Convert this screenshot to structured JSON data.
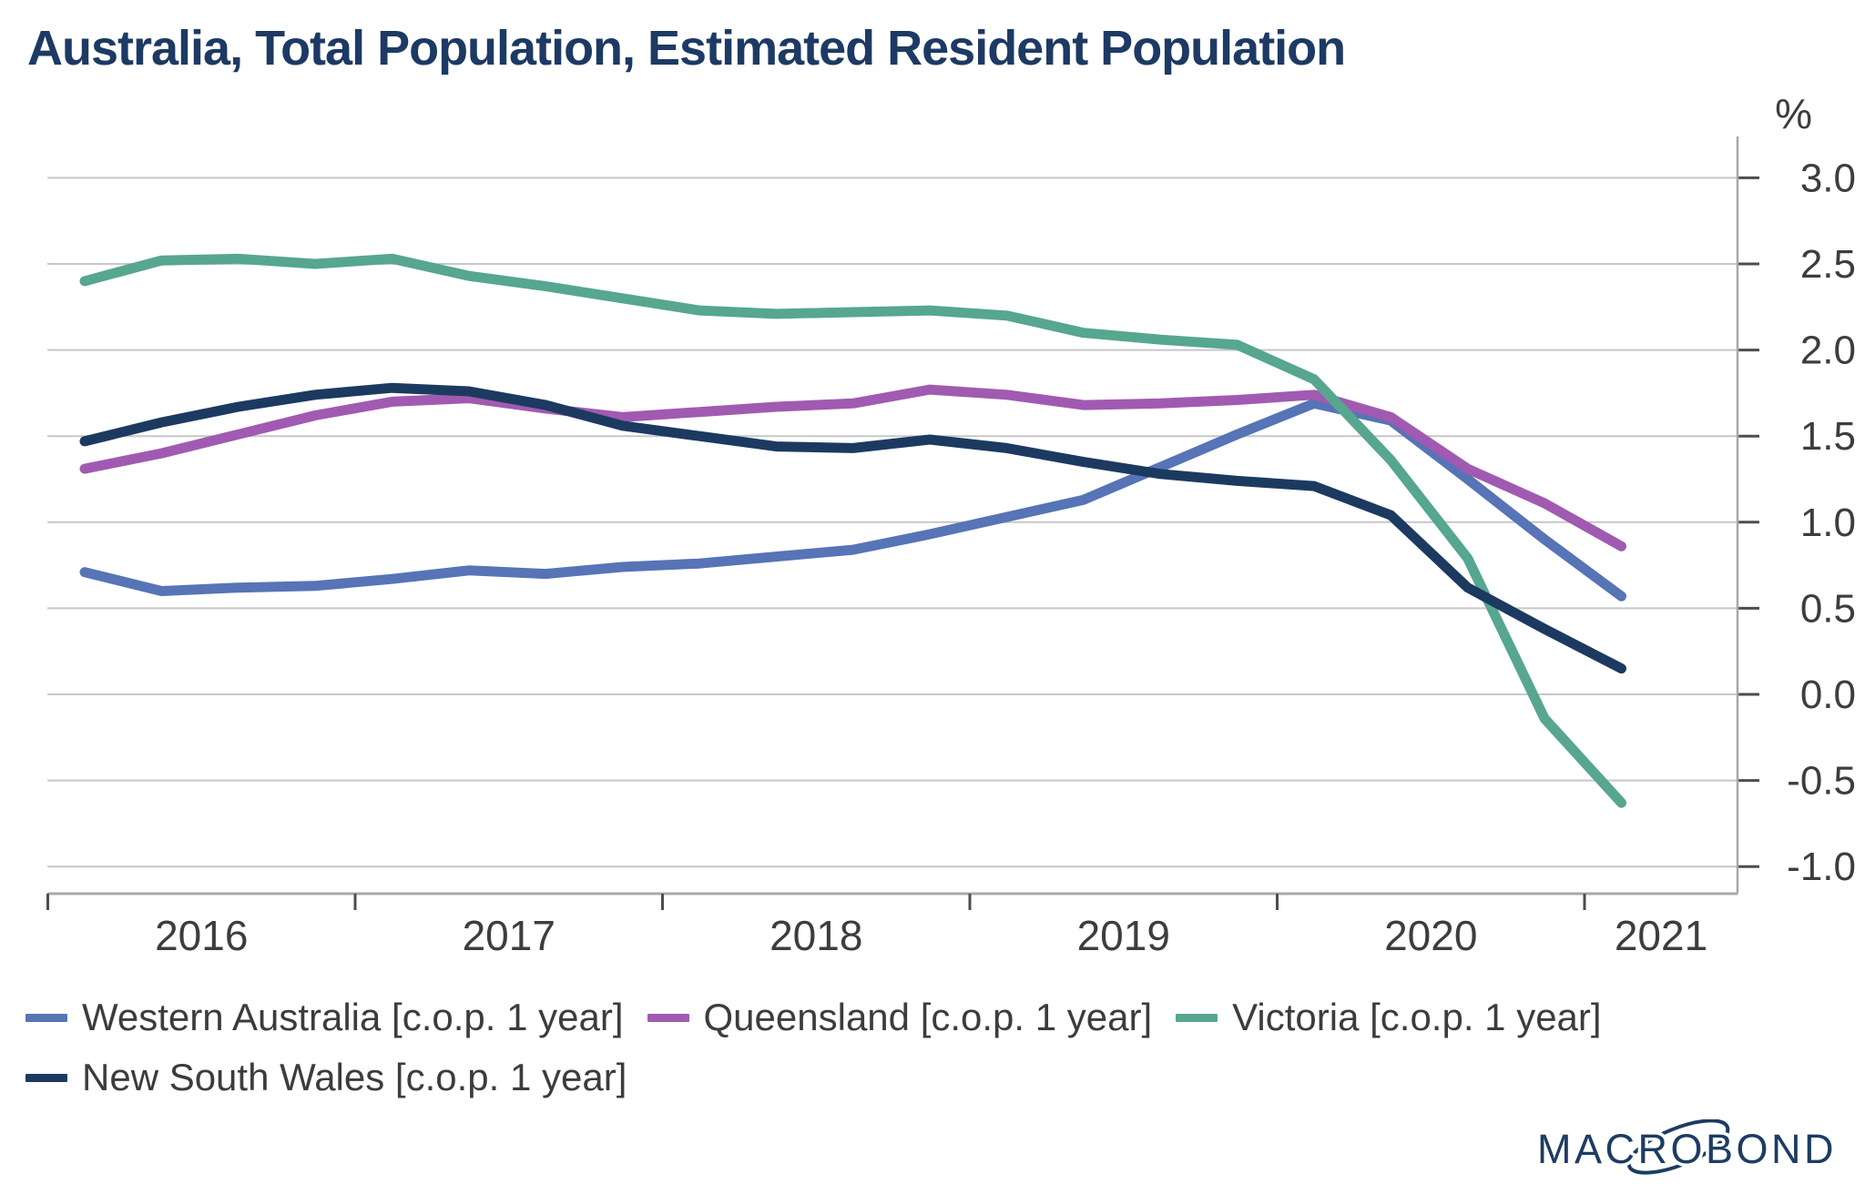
{
  "title": "Australia, Total Population, Estimated Resident Population",
  "chart_data": {
    "type": "line",
    "title": "Australia, Total Population, Estimated Resident Population",
    "xlabel": "",
    "ylabel": "%",
    "grid": true,
    "legend_position": "bottom",
    "x_axis": {
      "start": 2016.0,
      "end": 2021.5,
      "boundary_ticks": [
        2016,
        2017,
        2018,
        2019,
        2020,
        2021
      ],
      "tick_labels": [
        "2016",
        "2017",
        "2018",
        "2019",
        "2020",
        "2021"
      ]
    },
    "y_axis": {
      "min": -1.0,
      "max": 3.0,
      "tick_step": 0.5,
      "tick_labels": [
        "3.0",
        "2.5",
        "2.0",
        "1.5",
        "1.0",
        "0.5",
        "0.0",
        "-0.5",
        "-1.0"
      ],
      "unit": "%",
      "position": "right"
    },
    "periods": [
      "2016 Q1",
      "2016 Q2",
      "2016 Q3",
      "2016 Q4",
      "2017 Q1",
      "2017 Q2",
      "2017 Q3",
      "2017 Q4",
      "2018 Q1",
      "2018 Q2",
      "2018 Q3",
      "2018 Q4",
      "2019 Q1",
      "2019 Q2",
      "2019 Q3",
      "2019 Q4",
      "2020 Q1",
      "2020 Q2",
      "2020 Q3",
      "2020 Q4",
      "2021 Q1"
    ],
    "x": [
      2016.12,
      2016.37,
      2016.62,
      2016.87,
      2017.12,
      2017.37,
      2017.62,
      2017.87,
      2018.12,
      2018.37,
      2018.62,
      2018.87,
      2019.12,
      2019.37,
      2019.62,
      2019.87,
      2020.12,
      2020.37,
      2020.62,
      2020.87,
      2021.12
    ],
    "series": [
      {
        "name": "Western Australia [c.o.p. 1 year]",
        "color": "#5674b6",
        "values": [
          0.71,
          0.6,
          0.62,
          0.63,
          0.67,
          0.72,
          0.7,
          0.74,
          0.76,
          0.8,
          0.84,
          0.93,
          1.03,
          1.13,
          1.32,
          1.51,
          1.69,
          1.59,
          1.25,
          0.9,
          0.57
        ]
      },
      {
        "name": "Queensland [c.o.p. 1 year]",
        "color": "#a15ab1",
        "values": [
          1.31,
          1.4,
          1.51,
          1.62,
          1.7,
          1.72,
          1.66,
          1.61,
          1.64,
          1.67,
          1.69,
          1.77,
          1.74,
          1.68,
          1.69,
          1.71,
          1.74,
          1.61,
          1.31,
          1.11,
          0.86
        ]
      },
      {
        "name": "Victoria [c.o.p. 1 year]",
        "color": "#56a690",
        "values": [
          2.4,
          2.52,
          2.53,
          2.5,
          2.53,
          2.43,
          2.37,
          2.3,
          2.23,
          2.21,
          2.22,
          2.23,
          2.2,
          2.1,
          2.06,
          2.03,
          1.83,
          1.36,
          0.79,
          -0.14,
          -0.63
        ]
      },
      {
        "name": "New South Wales [c.o.p. 1 year]",
        "color": "#1c3a60",
        "values": [
          1.47,
          1.58,
          1.67,
          1.74,
          1.78,
          1.76,
          1.68,
          1.56,
          1.5,
          1.44,
          1.43,
          1.48,
          1.43,
          1.35,
          1.28,
          1.24,
          1.21,
          1.04,
          0.62,
          0.38,
          0.15
        ]
      }
    ],
    "style": {
      "gridline_color": "#c7c7c7",
      "axis_line_color": "#a8a8a8",
      "tick_color": "#4d4d4d",
      "tick_label_color": "#3d3d3d",
      "line_width": 11
    }
  },
  "legend": {
    "rows": [
      [
        0,
        1,
        2
      ],
      [
        3
      ]
    ]
  },
  "branding": {
    "logo_text": "MACROBOND",
    "logo_color": "#1d3c63"
  }
}
